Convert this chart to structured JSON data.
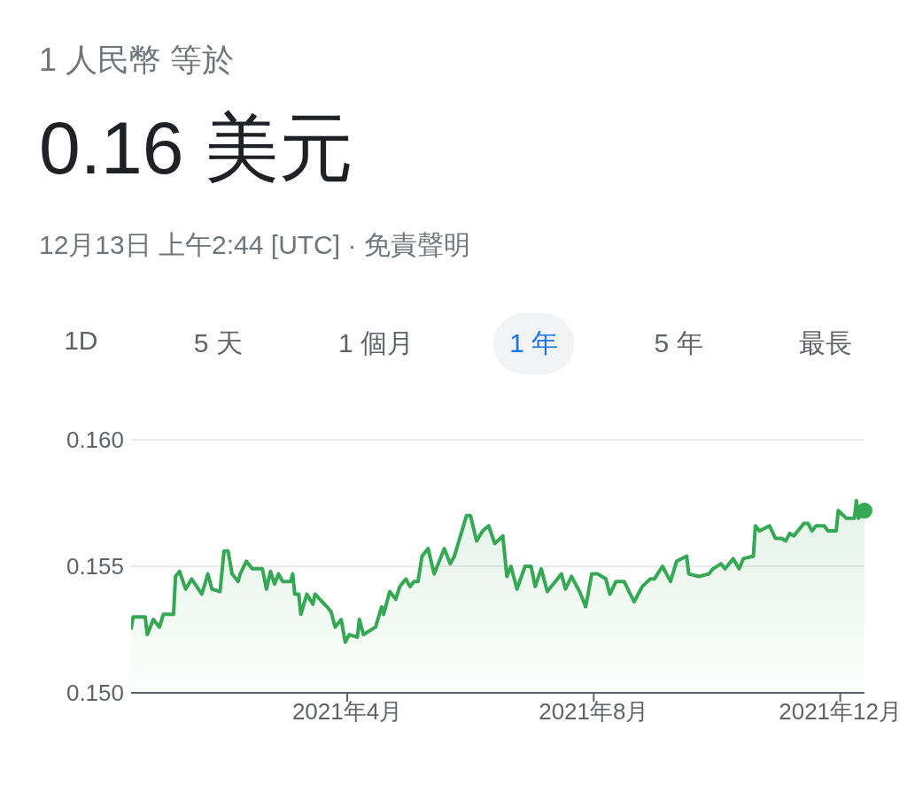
{
  "chart_data": {
    "type": "area",
    "subtitle": "1 人民幣 等於",
    "title": "0.16 美元",
    "annotations": [
      "12月13日 上午2:44 [UTC] · 免責聲明",
      "1D",
      "5 天",
      "1 個月",
      "1 年",
      "5 年",
      "最長"
    ],
    "x": [
      "2020-12-15",
      "2020-12-16",
      "2020-12-22",
      "2020-12-23",
      "2020-12-26",
      "2020-12-29",
      "2020-12-31",
      "2021-01-05",
      "2021-01-06",
      "2021-01-08",
      "2021-01-11",
      "2021-01-14",
      "2021-01-19",
      "2021-01-22",
      "2021-01-24",
      "2021-01-28",
      "2021-01-30",
      "2021-02-01",
      "2021-02-03",
      "2021-02-06",
      "2021-02-07",
      "2021-02-10",
      "2021-02-13",
      "2021-02-18",
      "2021-02-20",
      "2021-02-22",
      "2021-02-24",
      "2021-02-26",
      "2021-02-28",
      "2021-03-04",
      "2021-03-05",
      "2021-03-06",
      "2021-03-08",
      "2021-03-09",
      "2021-03-12",
      "2021-03-15",
      "2021-03-16",
      "2021-03-22",
      "2021-03-24",
      "2021-03-26",
      "2021-03-29",
      "2021-03-31",
      "2021-04-02",
      "2021-04-06",
      "2021-04-07",
      "2021-04-09",
      "2021-04-15",
      "2021-04-18",
      "2021-04-19",
      "2021-04-22",
      "2021-04-25",
      "2021-04-27",
      "2021-04-30",
      "2021-05-02",
      "2021-05-04",
      "2021-05-06",
      "2021-05-08",
      "2021-05-11",
      "2021-05-14",
      "2021-05-17",
      "2021-05-19",
      "2021-05-22",
      "2021-05-24",
      "2021-05-30",
      "2021-06-01",
      "2021-06-04",
      "2021-06-07",
      "2021-06-10",
      "2021-06-13",
      "2021-06-17",
      "2021-06-19",
      "2021-06-21",
      "2021-06-24",
      "2021-06-28",
      "2021-07-01",
      "2021-07-03",
      "2021-07-06",
      "2021-07-09",
      "2021-07-16",
      "2021-07-18",
      "2021-07-21",
      "2021-07-25",
      "2021-07-28",
      "2021-07-31",
      "2021-08-03",
      "2021-08-07",
      "2021-08-09",
      "2021-08-12",
      "2021-08-16",
      "2021-08-21",
      "2021-08-25",
      "2021-08-29",
      "2021-08-31",
      "2021-09-04",
      "2021-09-08",
      "2021-09-11",
      "2021-09-16",
      "2021-09-17",
      "2021-09-22",
      "2021-09-27",
      "2021-09-29",
      "2021-10-03",
      "2021-10-05",
      "2021-10-09",
      "2021-10-12",
      "2021-10-14",
      "2021-10-19",
      "2021-10-20",
      "2021-10-22",
      "2021-10-27",
      "2021-10-30",
      "2021-11-02",
      "2021-11-04",
      "2021-11-06",
      "2021-11-08",
      "2021-11-13",
      "2021-11-15",
      "2021-11-17",
      "2021-11-19",
      "2021-11-23",
      "2021-11-25",
      "2021-11-29",
      "2021-11-30",
      "2021-12-04",
      "2021-12-08",
      "2021-12-09",
      "2021-12-10",
      "2021-12-13"
    ],
    "series": [
      {
        "color": "#34a853",
        "values": [
          0.1525,
          0.153,
          0.153,
          0.1523,
          0.1529,
          0.1526,
          0.1531,
          0.1531,
          0.1546,
          0.1548,
          0.1541,
          0.1545,
          0.1539,
          0.1547,
          0.1541,
          0.154,
          0.1556,
          0.1556,
          0.1547,
          0.1544,
          0.1547,
          0.1552,
          0.1549,
          0.1549,
          0.1541,
          0.1548,
          0.1543,
          0.1547,
          0.1544,
          0.1544,
          0.1547,
          0.1539,
          0.1539,
          0.1531,
          0.1539,
          0.1535,
          0.1539,
          0.1534,
          0.1532,
          0.1526,
          0.1529,
          0.152,
          0.1523,
          0.1522,
          0.1529,
          0.1523,
          0.1526,
          0.1534,
          0.1531,
          0.154,
          0.1537,
          0.1542,
          0.1545,
          0.1542,
          0.1544,
          0.1544,
          0.1554,
          0.1557,
          0.1547,
          0.1553,
          0.1557,
          0.1551,
          0.1554,
          0.157,
          0.157,
          0.156,
          0.1564,
          0.1566,
          0.1559,
          0.1562,
          0.1546,
          0.155,
          0.1541,
          0.155,
          0.155,
          0.1542,
          0.1549,
          0.154,
          0.1547,
          0.1541,
          0.1546,
          0.154,
          0.1534,
          0.1547,
          0.1547,
          0.1545,
          0.1539,
          0.1544,
          0.1544,
          0.1536,
          0.1542,
          0.1545,
          0.1545,
          0.155,
          0.1544,
          0.1552,
          0.1554,
          0.1547,
          0.1546,
          0.1547,
          0.1549,
          0.1551,
          0.1549,
          0.1553,
          0.1549,
          0.1553,
          0.1554,
          0.1566,
          0.1564,
          0.1566,
          0.1561,
          0.1561,
          0.156,
          0.1563,
          0.1562,
          0.1567,
          0.1567,
          0.1564,
          0.1566,
          0.1566,
          0.1564,
          0.1564,
          0.1572,
          0.1569,
          0.1569,
          0.1576,
          0.1569,
          0.1572
        ]
      }
    ],
    "xlim": [
      "2020-12-15",
      "2021-12-13"
    ],
    "xticks": [
      {
        "value": "2021-04",
        "label": "2021年4月"
      },
      {
        "value": "2021-08",
        "label": "2021年8月"
      },
      {
        "value": "2021-12",
        "label": "2021年12月"
      }
    ],
    "ylim": [
      0.15,
      0.16
    ],
    "yticks": [
      {
        "value": 0.15,
        "label": "0.150"
      },
      {
        "value": 0.155,
        "label": "0.155"
      },
      {
        "value": 0.16,
        "label": "0.160"
      }
    ],
    "grid": "y",
    "legend": false
  }
}
